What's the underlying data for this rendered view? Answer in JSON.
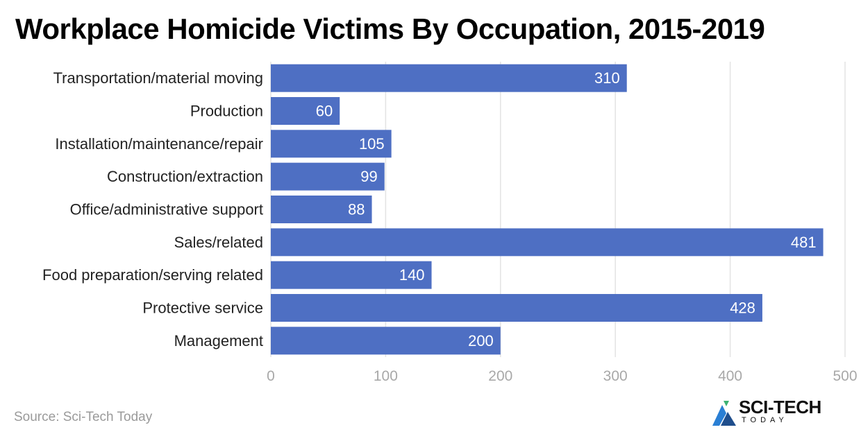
{
  "title": "Workplace Homicide Victims By Occupation, 2015-2019",
  "source": "Source: Sci-Tech Today",
  "logo": {
    "name": "SCI-TECH",
    "sub": "TODAY",
    "colors": [
      "#2a7fd4",
      "#3bb273",
      "#1f4e8c"
    ]
  },
  "colors": {
    "bar": "#4e6fc3",
    "grid": "#e3e3e3",
    "tick_text": "#a8a8a8",
    "label_text": "#222222",
    "value_text": "#ffffff"
  },
  "chart_data": {
    "type": "bar",
    "orientation": "horizontal",
    "title": "Workplace Homicide Victims By Occupation, 2015-2019",
    "categories": [
      "Transportation/material moving",
      "Production",
      "Installation/maintenance/repair",
      "Construction/extraction",
      "Office/administrative support",
      "Sales/related",
      "Food preparation/serving related",
      "Protective service",
      "Management"
    ],
    "values": [
      310,
      60,
      105,
      99,
      88,
      481,
      140,
      428,
      200
    ],
    "xlim": [
      0,
      500
    ],
    "xticks": [
      0,
      100,
      200,
      300,
      400,
      500
    ],
    "grid": true,
    "legend": "none",
    "data_labels": true
  }
}
